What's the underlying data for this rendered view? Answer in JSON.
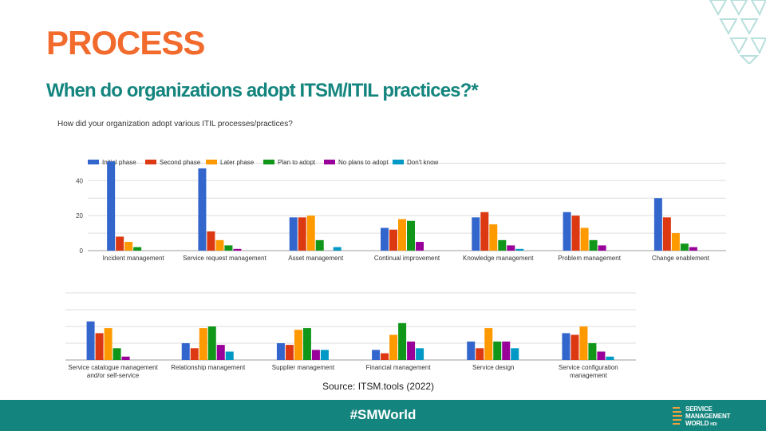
{
  "slide": {
    "title": "PROCESS",
    "subtitle": "When do organizations adopt ITSM/ITIL practices?*",
    "question": "How did your organization adopt various ITIL processes/practices?",
    "source": "Source: ITSM.tools (2022)",
    "hashtag": "#SMWorld",
    "logo_lines": [
      "SERVICE",
      "MANAGEMENT",
      "WORLD"
    ],
    "logo_sub": "HDI",
    "brand_color": "#14857e",
    "title_color": "#f26a2c"
  },
  "chart_data": [
    {
      "type": "bar",
      "title": "How did your organization adopt various ITIL processes/practices?",
      "categories": [
        "Incident management",
        "Service request management",
        "Asset management",
        "Continual improvement",
        "Knowledge management",
        "Problem management",
        "Change enablement"
      ],
      "series": [
        {
          "name": "Initial phase",
          "color": "#3366cc",
          "values": [
            51,
            47,
            19,
            13,
            19,
            22,
            30
          ]
        },
        {
          "name": "Second phase",
          "color": "#dc3912",
          "values": [
            8,
            11,
            19,
            12,
            22,
            20,
            19
          ]
        },
        {
          "name": "Later phase",
          "color": "#ff9900",
          "values": [
            5,
            6,
            20,
            18,
            15,
            13,
            10
          ]
        },
        {
          "name": "Plan to adopt",
          "color": "#109618",
          "values": [
            2,
            3,
            6,
            17,
            6,
            6,
            4
          ]
        },
        {
          "name": "No plans to adopt",
          "color": "#990099",
          "values": [
            0,
            1,
            0,
            5,
            3,
            3,
            2
          ]
        },
        {
          "name": "Don't know",
          "color": "#0099c6",
          "values": [
            0,
            0,
            2,
            0,
            1,
            0,
            0
          ]
        }
      ],
      "yticks": [
        0,
        20,
        40
      ],
      "ylim": [
        0,
        52
      ],
      "grid": true,
      "legend": "top-left"
    },
    {
      "type": "bar",
      "categories": [
        "Service catalogue management and/or self-service",
        "Relationship management",
        "Supplier management",
        "Financial management",
        "Service design",
        "Service configuration management"
      ],
      "series": [
        {
          "name": "Initial phase",
          "color": "#3366cc",
          "values": [
            23,
            10,
            10,
            6,
            11,
            16
          ]
        },
        {
          "name": "Second phase",
          "color": "#dc3912",
          "values": [
            16,
            7,
            9,
            4,
            7,
            15
          ]
        },
        {
          "name": "Later phase",
          "color": "#ff9900",
          "values": [
            19,
            19,
            18,
            15,
            19,
            20
          ]
        },
        {
          "name": "Plan to adopt",
          "color": "#109618",
          "values": [
            7,
            20,
            19,
            22,
            11,
            10
          ]
        },
        {
          "name": "No plans to adopt",
          "color": "#990099",
          "values": [
            2,
            9,
            6,
            11,
            11,
            5
          ]
        },
        {
          "name": "Don't know",
          "color": "#0099c6",
          "values": [
            0,
            5,
            6,
            7,
            7,
            2
          ]
        }
      ],
      "ylim": [
        0,
        40
      ],
      "grid": true,
      "legend": "none"
    }
  ]
}
